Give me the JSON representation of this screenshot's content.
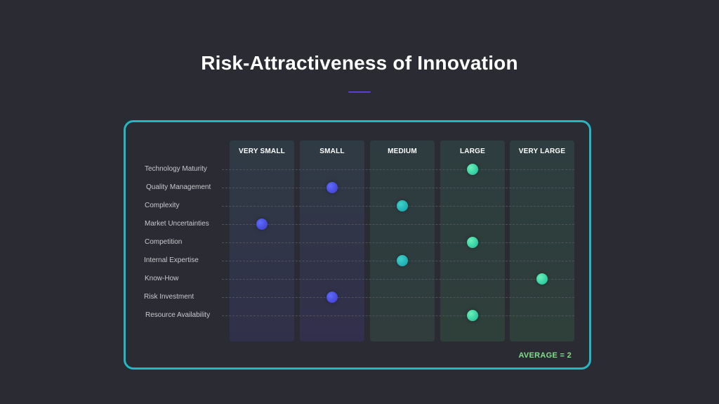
{
  "title": "Risk-Attractiveness of Innovation",
  "columns": [
    "VERY SMALL",
    "SMALL",
    "MEDIUM",
    "LARGE",
    "VERY LARGE"
  ],
  "rows": [
    {
      "label": "Technology Maturity",
      "rating": "LARGE"
    },
    {
      "label": "Quality Management",
      "rating": "SMALL"
    },
    {
      "label": "Complexity",
      "rating": "MEDIUM"
    },
    {
      "label": "Market Uncertainties",
      "rating": "VERY SMALL"
    },
    {
      "label": "Competition",
      "rating": "LARGE"
    },
    {
      "label": "Internal Expertise",
      "rating": "MEDIUM"
    },
    {
      "label": "Know-How",
      "rating": "VERY LARGE"
    },
    {
      "label": "Risk Investment",
      "rating": "SMALL"
    },
    {
      "label": "Resource Availability",
      "rating": "LARGE"
    }
  ],
  "average_label": "AVERAGE = 2",
  "colors": {
    "background": "#2b2c33",
    "panel_border": "#25b6c4",
    "accent_rule": "#5b3fd6",
    "dot_low": "#4a4fe0",
    "dot_medium": "#22b3b6",
    "dot_high": "#39d3a6",
    "average_text": "#7ee08a"
  }
}
